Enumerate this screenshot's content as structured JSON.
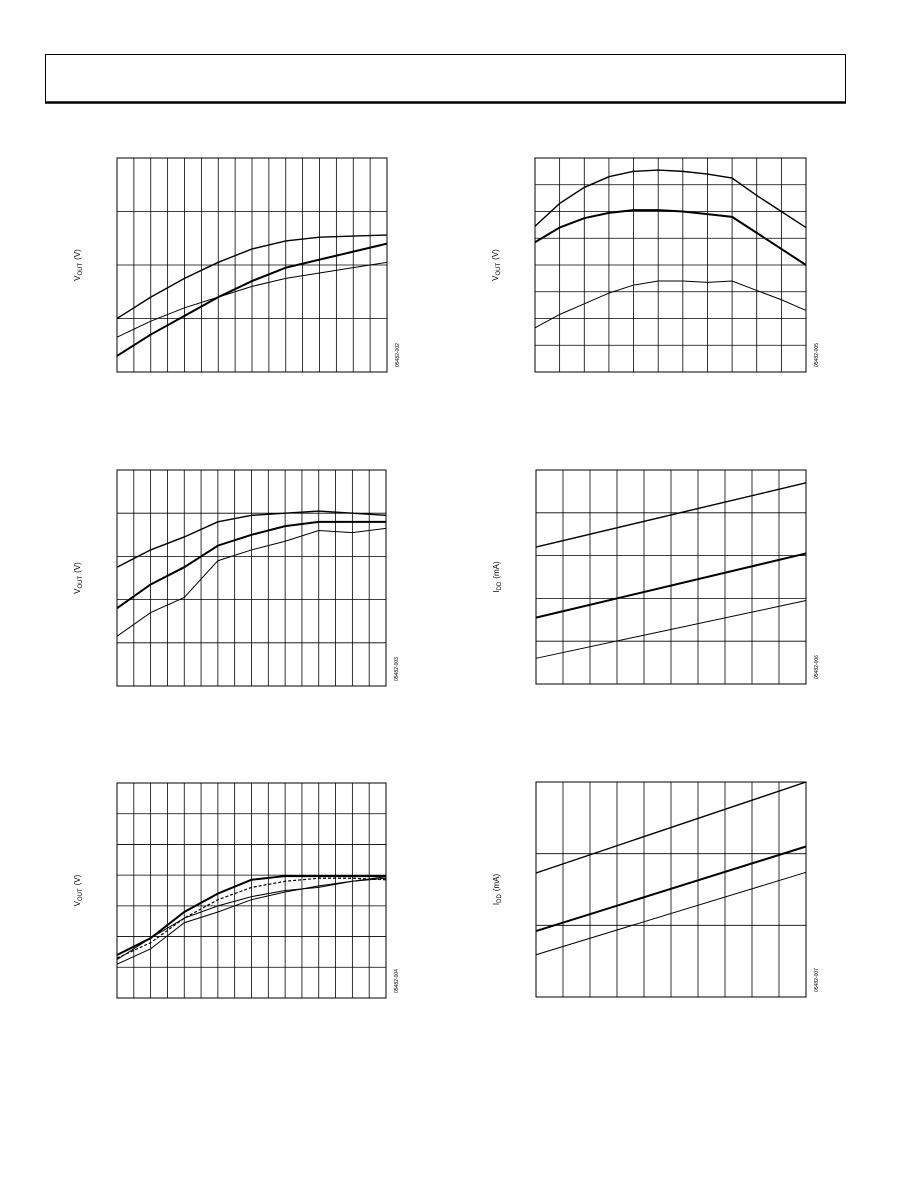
{
  "chart_data": [
    {
      "type": "line",
      "y_label": {
        "symbol": "V",
        "subscript": "OUT",
        "unit": "(V)"
      },
      "note": "05482-002",
      "xlim": [
        0,
        16
      ],
      "ylim": [
        0,
        4
      ],
      "grid": true,
      "x": [
        0,
        2,
        4,
        6,
        8,
        10,
        12,
        14,
        16
      ],
      "series": [
        {
          "color": "#000",
          "line_width": 1.4,
          "values": [
            1.0,
            1.4,
            1.75,
            2.05,
            2.3,
            2.45,
            2.52,
            2.54,
            2.56
          ]
        },
        {
          "color": "#000",
          "line_width": 2,
          "values": [
            0.3,
            0.7,
            1.05,
            1.4,
            1.7,
            1.95,
            2.1,
            2.25,
            2.4
          ]
        },
        {
          "color": "#000",
          "line_width": 1,
          "values": [
            0.65,
            0.95,
            1.2,
            1.4,
            1.6,
            1.75,
            1.85,
            1.95,
            2.05
          ]
        }
      ]
    },
    {
      "type": "line",
      "y_label": {
        "symbol": "V",
        "subscript": "OUT",
        "unit": "(V)"
      },
      "note": "05482-005",
      "xlim": [
        0,
        11
      ],
      "ylim": [
        0,
        8
      ],
      "grid": true,
      "x": [
        0,
        1,
        2,
        3,
        4,
        5,
        6,
        7,
        8,
        9,
        10,
        11
      ],
      "series": [
        {
          "color": "#000",
          "line_width": 1.4,
          "values": [
            5.45,
            6.3,
            6.9,
            7.3,
            7.5,
            7.55,
            7.5,
            7.4,
            7.25,
            6.6,
            6.0,
            5.4
          ]
        },
        {
          "color": "#000",
          "line_width": 2,
          "values": [
            4.85,
            5.4,
            5.75,
            5.95,
            6.05,
            6.05,
            6.0,
            5.9,
            5.8,
            5.2,
            4.6,
            4.0
          ]
        },
        {
          "color": "#000",
          "line_width": 1,
          "values": [
            1.65,
            2.15,
            2.55,
            2.95,
            3.25,
            3.4,
            3.4,
            3.35,
            3.4,
            3.05,
            2.7,
            2.3
          ]
        }
      ]
    },
    {
      "type": "line",
      "y_label": {
        "symbol": "V",
        "subscript": "OUT",
        "unit": "(V)"
      },
      "note": "05482-003",
      "xlim": [
        0,
        16
      ],
      "ylim": [
        0,
        5
      ],
      "grid": true,
      "x": [
        0,
        2,
        4,
        6,
        8,
        10,
        12,
        14,
        16
      ],
      "series": [
        {
          "color": "#000",
          "line_width": 1.4,
          "values": [
            2.75,
            3.15,
            3.45,
            3.8,
            3.95,
            4.0,
            4.05,
            4.0,
            3.95
          ]
        },
        {
          "color": "#000",
          "line_width": 2,
          "values": [
            1.8,
            2.35,
            2.75,
            3.25,
            3.5,
            3.7,
            3.8,
            3.8,
            3.8
          ]
        },
        {
          "color": "#000",
          "line_width": 1,
          "values": [
            1.15,
            1.7,
            2.05,
            2.9,
            3.15,
            3.35,
            3.6,
            3.55,
            3.65
          ]
        }
      ]
    },
    {
      "type": "line",
      "y_label": {
        "symbol": "I",
        "subscript": "DD",
        "unit": "(mA)"
      },
      "note": "05482-006",
      "xlim": [
        0,
        10
      ],
      "ylim": [
        0,
        5
      ],
      "grid": true,
      "x": [
        0,
        10
      ],
      "series": [
        {
          "color": "#000",
          "line_width": 1.4,
          "values": [
            3.2,
            4.7
          ]
        },
        {
          "color": "#000",
          "line_width": 2,
          "values": [
            1.55,
            3.05
          ]
        },
        {
          "color": "#000",
          "line_width": 1,
          "values": [
            0.6,
            1.95
          ]
        }
      ]
    },
    {
      "type": "line",
      "y_label": {
        "symbol": "V",
        "subscript": "OUT",
        "unit": "(V)"
      },
      "note": "05482-004",
      "xlim": [
        0,
        16
      ],
      "ylim": [
        0,
        7
      ],
      "grid": true,
      "x": [
        0,
        2,
        4,
        6,
        8,
        10,
        12,
        14,
        16
      ],
      "series": [
        {
          "color": "#000",
          "line_width": 2,
          "values": [
            1.4,
            1.95,
            2.8,
            3.4,
            3.85,
            3.97,
            3.97,
            3.97,
            3.97
          ]
        },
        {
          "color": "#000",
          "line_width": 1.2,
          "dash": true,
          "values": [
            1.3,
            1.8,
            2.6,
            3.2,
            3.6,
            3.8,
            3.9,
            3.9,
            3.85
          ]
        },
        {
          "color": "#000",
          "line_width": 1,
          "values": [
            1.25,
            1.95,
            2.6,
            3.0,
            3.3,
            3.5,
            3.6,
            3.8,
            3.9
          ]
        },
        {
          "color": "#000",
          "line_width": 1,
          "values": [
            1.1,
            1.6,
            2.45,
            2.8,
            3.2,
            3.45,
            3.65,
            3.8,
            3.95
          ]
        }
      ]
    },
    {
      "type": "line",
      "y_label": {
        "symbol": "I",
        "subscript": "DD",
        "unit": "(mA)"
      },
      "note": "05482-007",
      "xlim": [
        0,
        10
      ],
      "ylim": [
        0,
        3
      ],
      "grid": true,
      "x": [
        0,
        10
      ],
      "series": [
        {
          "color": "#000",
          "line_width": 1.4,
          "values": [
            1.73,
            3.0
          ]
        },
        {
          "color": "#000",
          "line_width": 2,
          "values": [
            0.92,
            2.1
          ]
        },
        {
          "color": "#000",
          "line_width": 1,
          "values": [
            0.59,
            1.74
          ]
        }
      ]
    }
  ]
}
